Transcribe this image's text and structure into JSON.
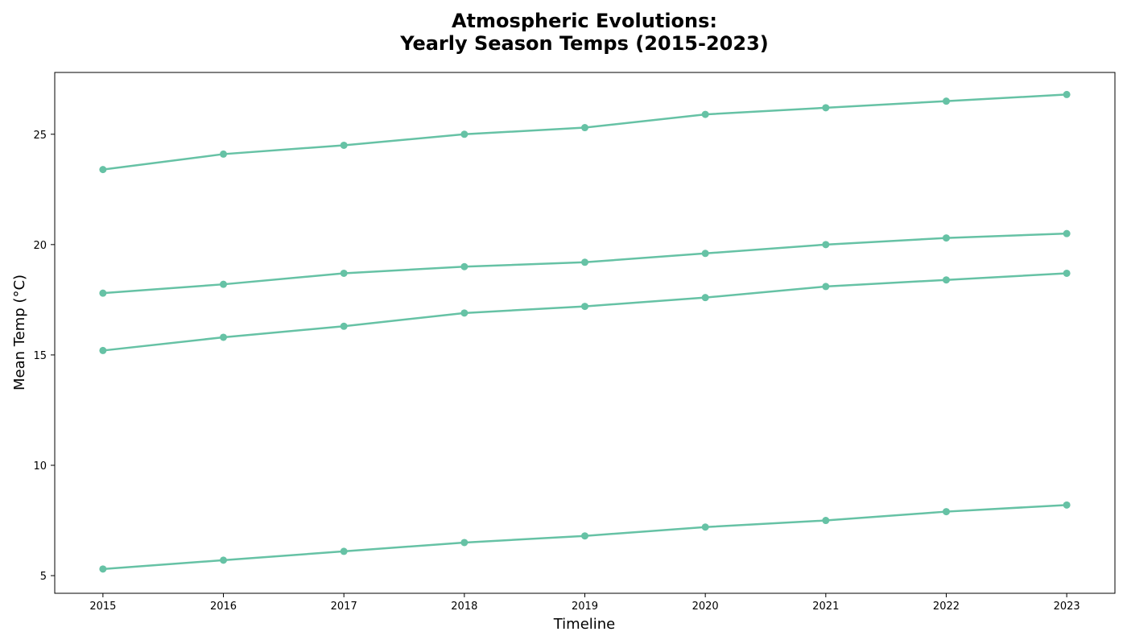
{
  "chart_data": {
    "type": "line",
    "title_lines": [
      "Atmospheric Evolutions:",
      "Yearly Season Temps (2015-2023)"
    ],
    "xlabel": "Timeline",
    "ylabel": "Mean Temp (°C)",
    "x": [
      2015,
      2016,
      2017,
      2018,
      2019,
      2020,
      2021,
      2022,
      2023
    ],
    "x_tick_labels": [
      "2015",
      "2016",
      "2017",
      "2018",
      "2019",
      "2020",
      "2021",
      "2022",
      "2023"
    ],
    "y_ticks": [
      5,
      10,
      15,
      20,
      25
    ],
    "y_tick_labels": [
      "5",
      "10",
      "15",
      "20",
      "25"
    ],
    "xlim": [
      2014.6,
      2023.4
    ],
    "ylim": [
      4.2,
      27.8
    ],
    "grid": false,
    "line_color": "#66c2a5",
    "series": [
      {
        "values": [
          23.4,
          24.1,
          24.5,
          25.0,
          25.3,
          25.9,
          26.2,
          26.5,
          26.8
        ]
      },
      {
        "values": [
          17.8,
          18.2,
          18.7,
          19.0,
          19.2,
          19.6,
          20.0,
          20.3,
          20.5
        ]
      },
      {
        "values": [
          15.2,
          15.8,
          16.3,
          16.9,
          17.2,
          17.6,
          18.1,
          18.4,
          18.7
        ]
      },
      {
        "values": [
          5.3,
          5.7,
          6.1,
          6.5,
          6.8,
          7.2,
          7.5,
          7.9,
          8.2
        ]
      }
    ]
  }
}
